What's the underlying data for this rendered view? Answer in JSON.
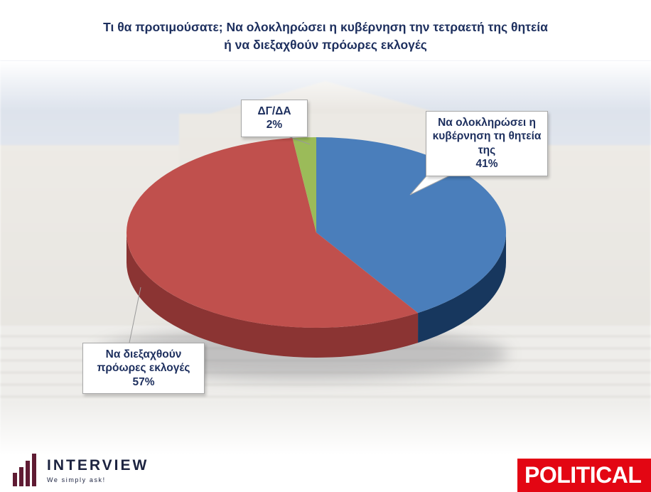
{
  "header": {
    "title_line1": "Τι θα προτιμούσατε; Να ολοκληρώσει η κυβέρνηση την τετραετή της θητεία",
    "title_line2": "ή να διεξαχθούν πρόωρες εκλογές"
  },
  "chart_data": {
    "type": "pie",
    "style": "3d",
    "rotation": "clockwise",
    "start_angle_deg": 0,
    "title": "Τι θα προτιμούσατε; Να ολοκληρώσει η κυβέρνηση την τετραετή της θητεία ή να διεξαχθούν πρόωρες εκλογές",
    "legend": "callout-boxes",
    "slices": [
      {
        "label": "Να ολοκληρώσει η κυβέρνηση τη θητεία της",
        "value": 41,
        "pct": "41%",
        "color": "#4a7ebb",
        "side_color": "#17375e"
      },
      {
        "label": "Να διεξαχθούν πρόωρες εκλογές",
        "value": 57,
        "pct": "57%",
        "color": "#c0504d",
        "side_color": "#8b3433"
      },
      {
        "label": "ΔΓ/ΔΑ",
        "value": 2,
        "pct": "2%",
        "color": "#9bbb59",
        "side_color": "#6f8c3e"
      }
    ]
  },
  "footer": {
    "brand_name": "INTERVIEW",
    "brand_tagline": "We simply ask!",
    "right_logo_text": "POLITICAL"
  },
  "colors": {
    "title_text": "#1d2f5e",
    "callout_text": "#1d2f5e",
    "political_red": "#e30613",
    "brand_navy": "#1c2340",
    "brand_maroon": "#5f1b33"
  }
}
